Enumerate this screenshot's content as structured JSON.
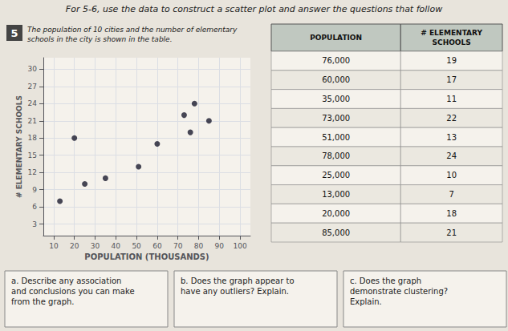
{
  "chart_data": {
    "type": "scatter",
    "title": "For 5-6, use the data to construct a scatter plot and answer the questions that follow",
    "subtitle": "The population of 10 cities and the number of elementary\nschools in the city is shown in the table.",
    "badge": "5",
    "xlabel": "POPULATION (THOUSANDS)",
    "ylabel": "# ELEMENTARY SCHOOLS",
    "x": [
      76,
      60,
      35,
      73,
      51,
      78,
      25,
      13,
      20,
      85
    ],
    "values": [
      19,
      17,
      11,
      22,
      13,
      24,
      10,
      7,
      18,
      21
    ],
    "color": "#1a1a2e",
    "xlim": [
      5,
      105
    ],
    "xticks": [
      10,
      20,
      30,
      40,
      50,
      60,
      70,
      80,
      90,
      100
    ],
    "ylim": [
      1,
      32
    ],
    "yticks": [
      3,
      6,
      9,
      12,
      15,
      18,
      21,
      24,
      27,
      30
    ],
    "grid": true,
    "table": {
      "columns": [
        "POPULATION",
        "# ELEMENTARY\nSCHOOLS"
      ],
      "rows": [
        [
          "76,000",
          19
        ],
        [
          "60,000",
          17
        ],
        [
          "35,000",
          11
        ],
        [
          "73,000",
          22
        ],
        [
          "51,000",
          13
        ],
        [
          "78,000",
          24
        ],
        [
          "25,000",
          10
        ],
        [
          "13,000",
          7
        ],
        [
          "20,000",
          18
        ],
        [
          "85,000",
          21
        ]
      ]
    },
    "questions": [
      "a. Describe any association\nand conclusions you can make\nfrom the graph.",
      "b. Does the graph appear to\nhave any outliers? Explain.",
      "c. Does the graph\ndemonstrate clustering?\nExplain."
    ]
  }
}
